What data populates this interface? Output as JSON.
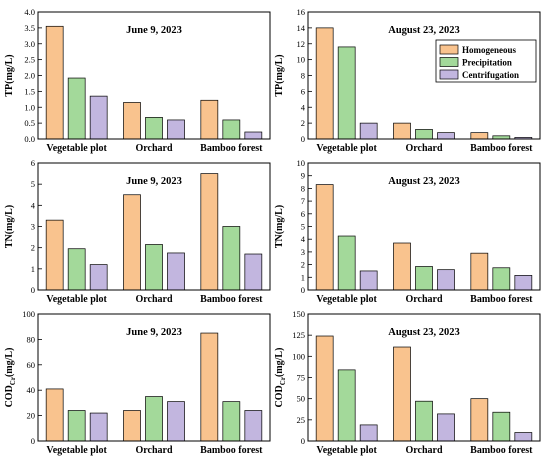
{
  "colors": {
    "Homogeneous": "#f9c38e",
    "Precipitation": "#a3d99a",
    "Centrifugation": "#c2b6df",
    "stroke": "#000000"
  },
  "legend": {
    "placement": "top-right",
    "panel": 1,
    "items": [
      "Homogeneous",
      "Precipitation",
      "Centrifugation"
    ]
  },
  "chart_data": [
    {
      "type": "bar",
      "title": "June 9, 2023",
      "ylabel": "TP(mg/L)",
      "ylim": [
        0,
        4.0
      ],
      "yticks": [
        "0.0",
        "0.5",
        "1.0",
        "1.5",
        "2.0",
        "2.5",
        "3.0",
        "3.5",
        "4.0"
      ],
      "categories": [
        "Vegetable plot",
        "Orchard",
        "Bamboo forest"
      ],
      "series": [
        {
          "name": "Homogeneous",
          "values": [
            3.55,
            1.15,
            1.22
          ]
        },
        {
          "name": "Precipitation",
          "values": [
            1.92,
            0.68,
            0.6
          ]
        },
        {
          "name": "Centrifugation",
          "values": [
            1.35,
            0.6,
            0.22
          ]
        }
      ]
    },
    {
      "type": "bar",
      "title": "August 23, 2023",
      "ylabel": "TP(mg/L)",
      "ylim": [
        0,
        16
      ],
      "yticks": [
        "0",
        "2",
        "4",
        "6",
        "8",
        "10",
        "12",
        "14",
        "16"
      ],
      "categories": [
        "Vegetable plot",
        "Orchard",
        "Bamboo forest"
      ],
      "series": [
        {
          "name": "Homogeneous",
          "values": [
            14.0,
            2.0,
            0.8
          ]
        },
        {
          "name": "Precipitation",
          "values": [
            11.6,
            1.2,
            0.4
          ]
        },
        {
          "name": "Centrifugation",
          "values": [
            2.0,
            0.8,
            0.2
          ]
        }
      ]
    },
    {
      "type": "bar",
      "title": "June 9, 2023",
      "ylabel": "TN(mg/L)",
      "ylim": [
        0,
        6
      ],
      "yticks": [
        "0",
        "1",
        "2",
        "3",
        "4",
        "5",
        "6"
      ],
      "categories": [
        "Vegetable plot",
        "Orchard",
        "Bamboo forest"
      ],
      "series": [
        {
          "name": "Homogeneous",
          "values": [
            3.3,
            4.5,
            5.5
          ]
        },
        {
          "name": "Precipitation",
          "values": [
            1.95,
            2.15,
            3.0
          ]
        },
        {
          "name": "Centrifugation",
          "values": [
            1.2,
            1.75,
            1.7
          ]
        }
      ]
    },
    {
      "type": "bar",
      "title": "August 23, 2023",
      "ylabel": "TN(mg/L)",
      "ylim": [
        0,
        10
      ],
      "yticks": [
        "0",
        "1",
        "2",
        "3",
        "4",
        "5",
        "6",
        "7",
        "8",
        "9",
        "10"
      ],
      "categories": [
        "Vegetable plot",
        "Orchard",
        "Bamboo forest"
      ],
      "series": [
        {
          "name": "Homogeneous",
          "values": [
            8.3,
            3.7,
            2.9
          ]
        },
        {
          "name": "Precipitation",
          "values": [
            4.25,
            1.85,
            1.75
          ]
        },
        {
          "name": "Centrifugation",
          "values": [
            1.5,
            1.6,
            1.15
          ]
        }
      ]
    },
    {
      "type": "bar",
      "title": "June 9, 2023",
      "ylabel": "COD",
      "ylabel_sub": "Cr",
      "ylabel_tail": "(mg/L)",
      "ylim": [
        0,
        100
      ],
      "yticks": [
        "0",
        "20",
        "40",
        "60",
        "80",
        "100"
      ],
      "categories": [
        "Vegetable plot",
        "Orchard",
        "Bamboo forest"
      ],
      "series": [
        {
          "name": "Homogeneous",
          "values": [
            41,
            24,
            85
          ]
        },
        {
          "name": "Precipitation",
          "values": [
            24,
            35,
            31
          ]
        },
        {
          "name": "Centrifugation",
          "values": [
            22,
            31,
            24
          ]
        }
      ]
    },
    {
      "type": "bar",
      "title": "August 23, 2023",
      "ylabel": "COD",
      "ylabel_sub": "Cr",
      "ylabel_tail": "(mg/L)",
      "ylim": [
        0,
        150
      ],
      "yticks": [
        "0",
        "25",
        "50",
        "75",
        "100",
        "125",
        "150"
      ],
      "categories": [
        "Vegetable plot",
        "Orchard",
        "Bamboo forest"
      ],
      "series": [
        {
          "name": "Homogeneous",
          "values": [
            124,
            111,
            50
          ]
        },
        {
          "name": "Precipitation",
          "values": [
            84,
            47,
            34
          ]
        },
        {
          "name": "Centrifugation",
          "values": [
            19,
            32,
            10
          ]
        }
      ]
    }
  ]
}
